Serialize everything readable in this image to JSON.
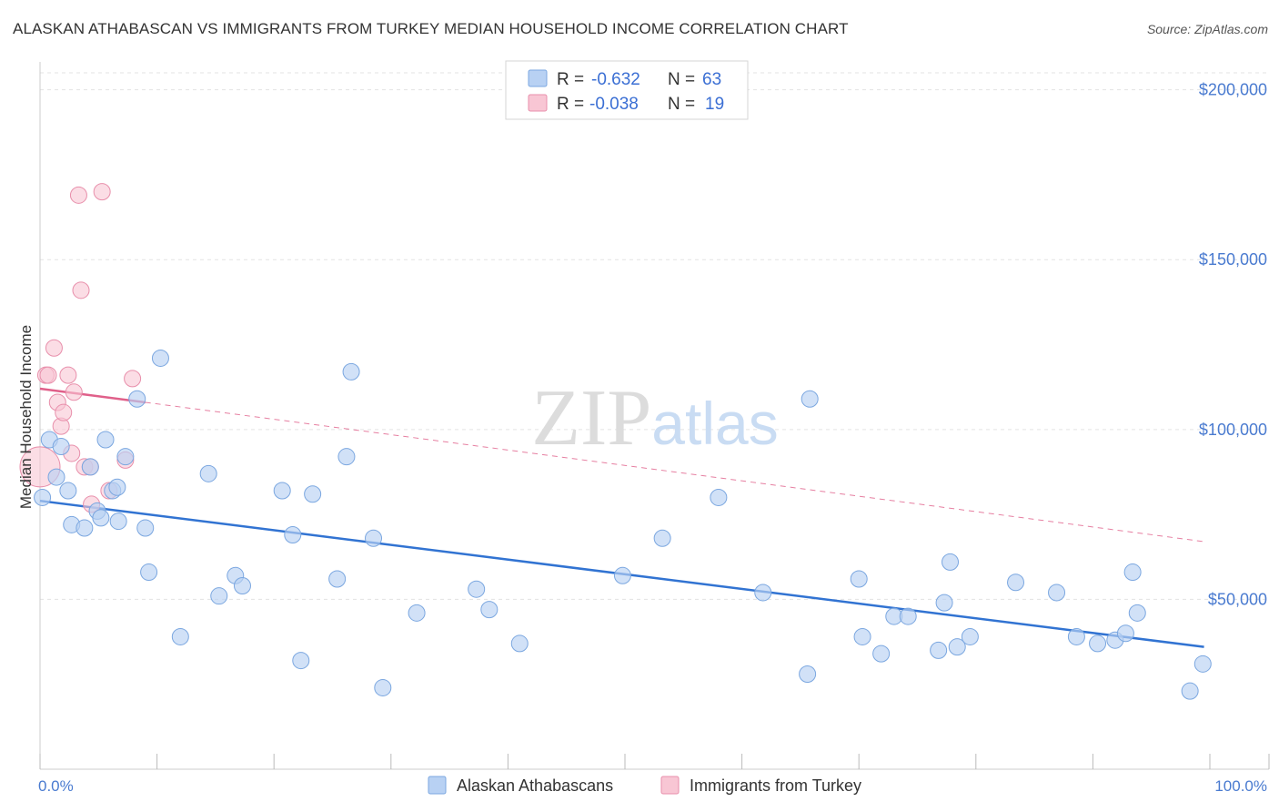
{
  "title": "ALASKAN ATHABASCAN VS IMMIGRANTS FROM TURKEY MEDIAN HOUSEHOLD INCOME CORRELATION CHART",
  "source": "Source: ZipAtlas.com",
  "watermark": "ZIPatlas",
  "chart_data": {
    "type": "scatter",
    "title": "ALASKAN ATHABASCAN VS IMMIGRANTS FROM TURKEY MEDIAN HOUSEHOLD INCOME CORRELATION CHART",
    "xlabel": "",
    "ylabel": "Median Household Income",
    "xlim": [
      0,
      100
    ],
    "ylim": [
      0,
      205000
    ],
    "x_tick_labels": [
      "0.0%",
      "100.0%"
    ],
    "y_ticks": [
      50000,
      100000,
      150000,
      200000
    ],
    "y_tick_labels": [
      "$50,000",
      "$100,000",
      "$150,000",
      "$200,000"
    ],
    "grid": true,
    "legend_position": "top-center",
    "colors": {
      "blue_fill": "#b8d1f3",
      "blue_stroke": "#7ba7e0",
      "blue_line": "#3173d2",
      "pink_fill": "#f8c6d4",
      "pink_stroke": "#e88fab",
      "pink_line": "#e0608a"
    },
    "series": [
      {
        "name": "Alaskan Athabascans",
        "r_label": "R =",
        "r_value": "-0.632",
        "n_label": "N =",
        "n_value": "63",
        "trend": {
          "x": [
            0,
            99.5
          ],
          "y": [
            79000,
            36000
          ]
        },
        "points": [
          [
            0.2,
            80000
          ],
          [
            0.8,
            97000
          ],
          [
            1.4,
            86000
          ],
          [
            1.8,
            95000
          ],
          [
            2.4,
            82000
          ],
          [
            2.7,
            72000
          ],
          [
            3.8,
            71000
          ],
          [
            4.3,
            89000
          ],
          [
            4.9,
            76000
          ],
          [
            5.2,
            74000
          ],
          [
            5.6,
            97000
          ],
          [
            6.2,
            82000
          ],
          [
            6.6,
            83000
          ],
          [
            6.7,
            73000
          ],
          [
            7.3,
            92000
          ],
          [
            8.3,
            109000
          ],
          [
            9.0,
            71000
          ],
          [
            9.3,
            58000
          ],
          [
            10.3,
            121000
          ],
          [
            12.0,
            39000
          ],
          [
            14.4,
            87000
          ],
          [
            15.3,
            51000
          ],
          [
            16.7,
            57000
          ],
          [
            17.3,
            54000
          ],
          [
            20.7,
            82000
          ],
          [
            21.6,
            69000
          ],
          [
            22.3,
            32000
          ],
          [
            23.3,
            81000
          ],
          [
            25.4,
            56000
          ],
          [
            26.2,
            92000
          ],
          [
            26.6,
            117000
          ],
          [
            28.5,
            68000
          ],
          [
            29.3,
            24000
          ],
          [
            32.2,
            46000
          ],
          [
            37.3,
            53000
          ],
          [
            38.4,
            47000
          ],
          [
            41.0,
            37000
          ],
          [
            49.8,
            57000
          ],
          [
            53.2,
            68000
          ],
          [
            58.0,
            80000
          ],
          [
            61.8,
            52000
          ],
          [
            65.6,
            28000
          ],
          [
            65.8,
            109000
          ],
          [
            70.0,
            56000
          ],
          [
            70.3,
            39000
          ],
          [
            71.9,
            34000
          ],
          [
            73.0,
            45000
          ],
          [
            74.2,
            45000
          ],
          [
            76.8,
            35000
          ],
          [
            77.3,
            49000
          ],
          [
            77.8,
            61000
          ],
          [
            78.4,
            36000
          ],
          [
            79.5,
            39000
          ],
          [
            83.4,
            55000
          ],
          [
            86.9,
            52000
          ],
          [
            88.6,
            39000
          ],
          [
            90.4,
            37000
          ],
          [
            91.9,
            38000
          ],
          [
            92.8,
            40000
          ],
          [
            93.4,
            58000
          ],
          [
            93.8,
            46000
          ],
          [
            98.3,
            23000
          ],
          [
            99.4,
            31000
          ]
        ]
      },
      {
        "name": "Immigrants from Turkey",
        "r_label": "R =",
        "r_value": "-0.038",
        "n_label": "N =",
        "n_value": "19",
        "trend_solid": {
          "x": [
            0,
            9
          ],
          "y": [
            112000,
            108000
          ]
        },
        "trend_dashed": {
          "x": [
            9,
            99.5
          ],
          "y": [
            108000,
            67000
          ]
        },
        "points": [
          [
            0.0,
            89000
          ],
          [
            0.5,
            116000
          ],
          [
            0.7,
            116000
          ],
          [
            1.2,
            124000
          ],
          [
            1.5,
            108000
          ],
          [
            1.8,
            101000
          ],
          [
            2.0,
            105000
          ],
          [
            2.4,
            116000
          ],
          [
            2.7,
            93000
          ],
          [
            2.9,
            111000
          ],
          [
            3.3,
            169000
          ],
          [
            3.5,
            141000
          ],
          [
            3.8,
            89000
          ],
          [
            4.3,
            89000
          ],
          [
            4.4,
            78000
          ],
          [
            5.3,
            170000
          ],
          [
            5.9,
            82000
          ],
          [
            7.3,
            91000
          ],
          [
            7.9,
            115000
          ]
        ]
      }
    ]
  }
}
